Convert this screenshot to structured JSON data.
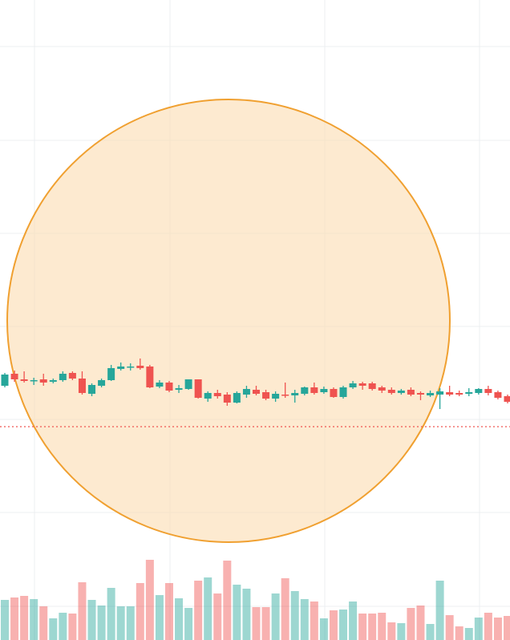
{
  "chart_data": {
    "type": "candlestick",
    "up_color": "#26a69a",
    "down_color": "#ef5350",
    "ylim": [
      0,
      798
    ],
    "volume_ylim": [
      0,
      110
    ],
    "reference_line": 266,
    "reference_color": "#ef5350",
    "open": [
      317,
      332,
      325,
      323,
      325,
      322,
      324,
      333,
      326,
      307,
      317,
      324,
      338,
      340,
      342,
      341,
      316,
      321,
      312,
      313,
      325,
      301,
      308,
      306,
      296,
      306,
      312,
      309,
      301,
      306,
      305,
      307,
      315,
      309,
      313,
      303,
      315,
      320,
      320,
      315,
      312,
      308,
      312,
      308,
      305,
      306,
      309,
      308,
      307,
      308,
      313,
      309,
      304
    ],
    "high": [
      333,
      336,
      335,
      327,
      332,
      326,
      335,
      335,
      335,
      320,
      326,
      343,
      346,
      345,
      351,
      343,
      324,
      323,
      318,
      325,
      325,
      310,
      312,
      309,
      310,
      317,
      317,
      312,
      310,
      321,
      312,
      316,
      321,
      316,
      315,
      317,
      323,
      322,
      322,
      317,
      315,
      313,
      315,
      310,
      311,
      314,
      317,
      311,
      314,
      314,
      317,
      311,
      306
    ],
    "low": [
      315,
      322,
      321,
      318,
      317,
      320,
      322,
      324,
      306,
      304,
      315,
      323,
      336,
      336,
      337,
      314,
      314,
      309,
      308,
      312,
      301,
      297,
      301,
      292,
      295,
      302,
      305,
      299,
      297,
      302,
      296,
      305,
      306,
      307,
      302,
      301,
      313,
      312,
      311,
      308,
      306,
      306,
      304,
      299,
      303,
      288,
      304,
      304,
      304,
      306,
      305,
      300,
      295
    ],
    "close": [
      331,
      325,
      323,
      324,
      321,
      324,
      332,
      326,
      308,
      318,
      324,
      339,
      341,
      341,
      339,
      315,
      321,
      311,
      314,
      325,
      302,
      308,
      304,
      296,
      308,
      313,
      307,
      301,
      307,
      305,
      308,
      315,
      308,
      313,
      303,
      315,
      320,
      317,
      313,
      311,
      308,
      311,
      306,
      306,
      308,
      310,
      306,
      306,
      309,
      313,
      308,
      302,
      297
    ],
    "volume": [
      50,
      53,
      55,
      51,
      42,
      27,
      34,
      33,
      72,
      50,
      43,
      65,
      42,
      42,
      71,
      100,
      56,
      71,
      52,
      40,
      74,
      78,
      58,
      99,
      69,
      64,
      41,
      41,
      58,
      77,
      61,
      51,
      48,
      27,
      37,
      38,
      48,
      33,
      33,
      34,
      22,
      21,
      40,
      43,
      20,
      74,
      31,
      17,
      15,
      28,
      34,
      28,
      30
    ]
  }
}
